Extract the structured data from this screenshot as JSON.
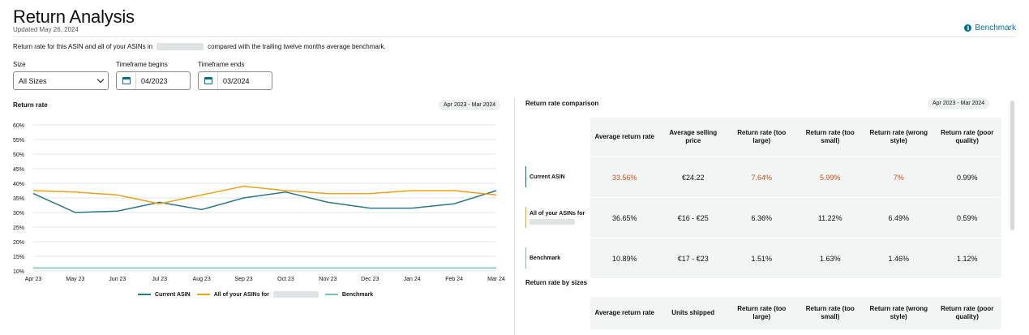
{
  "header": {
    "title": "Return Analysis",
    "updated": "Updated May 26, 2024",
    "benchmark_link": "Benchmark"
  },
  "description": {
    "prefix": "Return rate for this ASIN and all of your ASINs in",
    "suffix": "compared with the trailing twelve months average benchmark."
  },
  "filters": {
    "size_label": "Size",
    "size_value": "All Sizes",
    "begins_label": "Timeframe begins",
    "begins_value": "04/2023",
    "ends_label": "Timeframe ends",
    "ends_value": "03/2024"
  },
  "chart_panel": {
    "title": "Return rate",
    "range": "Apr 2023 - Mar 2024"
  },
  "chart_data": {
    "type": "line",
    "title": "Return rate",
    "x": [
      "Apr 23",
      "May 23",
      "Jun 23",
      "Jul 23",
      "Aug 23",
      "Sep 23",
      "Oct 23",
      "Nov 23",
      "Dec 23",
      "Jan 24",
      "Feb 24",
      "Mar 24"
    ],
    "y_ticks": [
      "10%",
      "15%",
      "20%",
      "25%",
      "30%",
      "35%",
      "40%",
      "45%",
      "50%",
      "55%",
      "60%"
    ],
    "ylim": [
      10,
      60
    ],
    "grid": true,
    "legend": "bottom",
    "series": [
      {
        "name": "Current ASIN",
        "color": "#2e7785",
        "values": [
          36.5,
          30,
          30.5,
          33.5,
          31,
          35,
          37,
          33.5,
          31.5,
          31.5,
          33,
          37.5
        ]
      },
      {
        "name": "All of your ASINs for",
        "color": "#e8a317",
        "values": [
          37.5,
          37,
          36,
          33,
          36,
          39,
          37.5,
          36.5,
          36.5,
          37.5,
          37.5,
          36
        ]
      },
      {
        "name": "Benchmark",
        "color": "#7fbfb3",
        "values": [
          11,
          11,
          11,
          11,
          11,
          11,
          11,
          11,
          11,
          11,
          11,
          11
        ]
      }
    ]
  },
  "comparison": {
    "title": "Return rate comparison",
    "range": "Apr 2023 - Mar 2024",
    "headers": [
      "Average return rate",
      "Average selling price",
      "Return rate (too large)",
      "Return rate (too small)",
      "Return rate (wrong style)",
      "Return rate (poor quality)"
    ],
    "rows": [
      {
        "label": "Current ASIN",
        "cells": [
          "33.56%",
          "€24.22",
          "7.64%",
          "5.99%",
          "7%",
          "0.99%"
        ]
      },
      {
        "label": "All of your ASINs for",
        "cells": [
          "36.65%",
          "€16 - €25",
          "6.36%",
          "11.22%",
          "6.49%",
          "0.59%"
        ]
      },
      {
        "label": "Benchmark",
        "cells": [
          "10.89%",
          "€17 - €23",
          "1.51%",
          "1.63%",
          "1.46%",
          "1.12%"
        ]
      }
    ]
  },
  "by_sizes": {
    "title": "Return rate by sizes",
    "headers": [
      "Average return rate",
      "Units shipped",
      "Return rate (too large)",
      "Return rate (too small)",
      "Return rate (wrong style)",
      "Return rate (poor quality)"
    ]
  },
  "colors": {
    "current": "#2e7785",
    "all": "#e8a317",
    "benchmark": "#7fbfb3",
    "alert": "#c7511f",
    "link": "#007185"
  }
}
